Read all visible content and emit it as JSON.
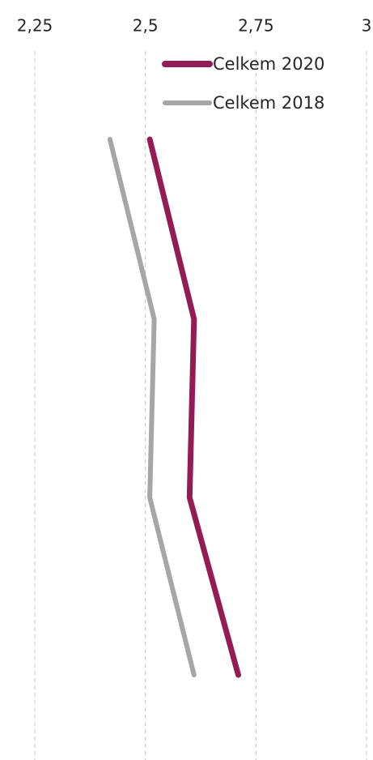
{
  "chart_data": {
    "type": "line",
    "orientation": "vertical-profile",
    "x_ticks": [
      "2,25",
      "2,5",
      "2,75",
      "3"
    ],
    "x_tick_values": [
      2.25,
      2.5,
      2.75,
      3.0
    ],
    "xlim": [
      2.25,
      3.0
    ],
    "y_positions": [
      1,
      2,
      3,
      4
    ],
    "grid": true,
    "legend_position": "top-right",
    "series": [
      {
        "name": "Celkem 2020",
        "color": "#951B55",
        "values": [
          2.51,
          2.61,
          2.6,
          2.71
        ]
      },
      {
        "name": "Celkem 2018",
        "color": "#A6A6A6",
        "values": [
          2.42,
          2.52,
          2.51,
          2.61
        ]
      }
    ]
  }
}
